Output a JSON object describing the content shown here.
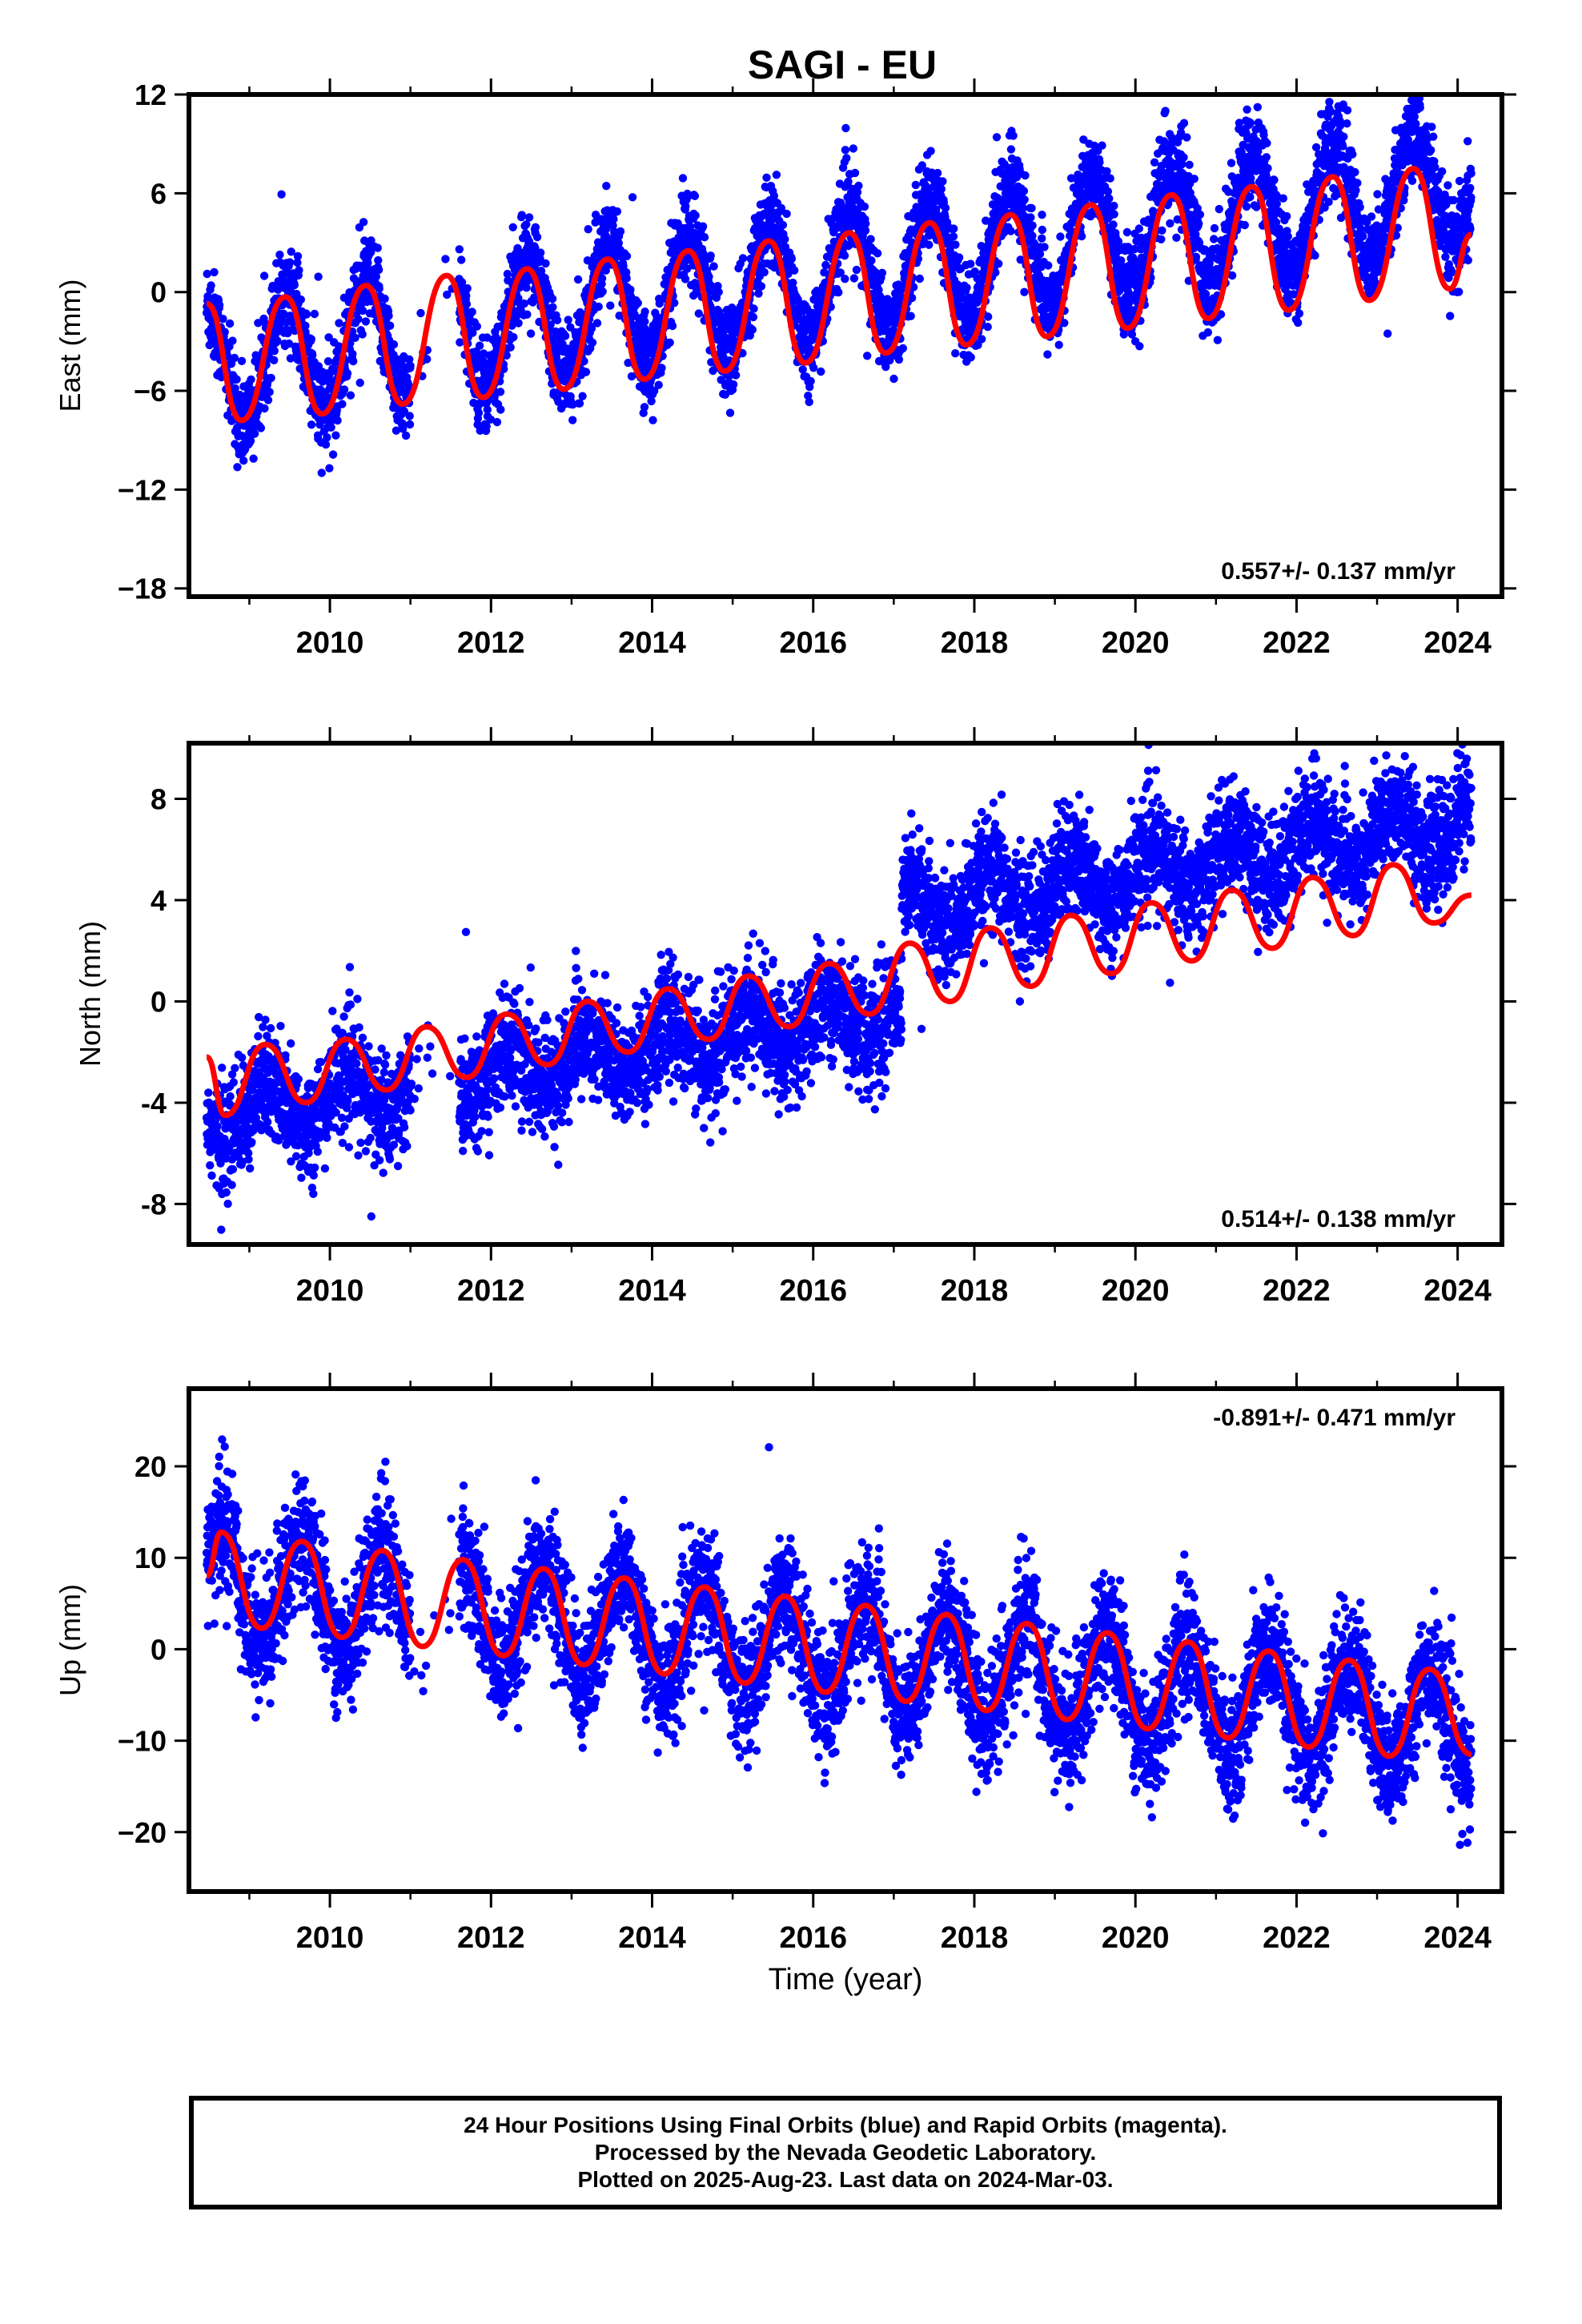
{
  "title": "SAGI - EU",
  "xlabel": "Time (year)",
  "x_ticks": [
    "2010",
    "2012",
    "2014",
    "2016",
    "2018",
    "2020",
    "2022",
    "2024"
  ],
  "caption": {
    "line1": "24 Hour Positions Using Final Orbits (blue) and Rapid Orbits (magenta).",
    "line2": "Processed by the Nevada Geodetic Laboratory.",
    "line3": "Plotted on 2025-Aug-23. Last data on 2024-Mar-03."
  },
  "colors": {
    "final_orbits": "#0000ff",
    "model": "#ff0000",
    "frame": "#000000"
  },
  "chart_data": [
    {
      "type": "scatter",
      "ylabel": "East (mm)",
      "rate_label": "0.557+/- 0.137 mm/yr",
      "xlim": [
        2008.25,
        2024.55
      ],
      "ylim": [
        -18.5,
        12
      ],
      "y_ticks": [
        12,
        6,
        0,
        -6,
        -12,
        -18
      ],
      "y_tick_labels": [
        "12",
        "6",
        "0",
        "−6",
        "−12",
        "−18"
      ],
      "series": [
        {
          "color": "#0000ff",
          "description": "daily positions",
          "x_range": [
            2008.47,
            2024.17
          ],
          "gap": [
            2011.0,
            2011.6
          ],
          "trend": {
            "at_start": -4.5,
            "slope": 0.7
          },
          "seasonal_amplitude": 3.7,
          "scatter_sd": 1.4
        },
        {
          "color": "#ff0000",
          "description": "model fit",
          "x_range": [
            2008.47,
            2024.17
          ],
          "points": [
            [
              2008.47,
              -0.7
            ],
            [
              2008.9,
              -7.8
            ],
            [
              2009.45,
              -0.3
            ],
            [
              2009.9,
              -7.4
            ],
            [
              2010.45,
              0.4
            ],
            [
              2010.9,
              -6.8
            ],
            [
              2011.45,
              1.0
            ],
            [
              2011.9,
              -6.4
            ],
            [
              2012.45,
              1.4
            ],
            [
              2012.9,
              -5.9
            ],
            [
              2013.45,
              2.0
            ],
            [
              2013.9,
              -5.3
            ],
            [
              2014.45,
              2.5
            ],
            [
              2014.9,
              -4.8
            ],
            [
              2015.45,
              3.1
            ],
            [
              2015.9,
              -4.3
            ],
            [
              2016.45,
              3.6
            ],
            [
              2016.9,
              -3.7
            ],
            [
              2017.45,
              4.2
            ],
            [
              2017.9,
              -3.2
            ],
            [
              2018.45,
              4.7
            ],
            [
              2018.9,
              -2.7
            ],
            [
              2019.45,
              5.3
            ],
            [
              2019.9,
              -2.2
            ],
            [
              2020.45,
              5.9
            ],
            [
              2020.9,
              -1.6
            ],
            [
              2021.45,
              6.4
            ],
            [
              2021.9,
              -1.1
            ],
            [
              2022.45,
              7.0
            ],
            [
              2022.9,
              -0.5
            ],
            [
              2023.45,
              7.5
            ],
            [
              2023.9,
              0.2
            ],
            [
              2024.17,
              3.5
            ]
          ]
        }
      ]
    },
    {
      "type": "scatter",
      "ylabel": "North (mm)",
      "rate_label": "0.514+/- 0.138 mm/yr",
      "xlim": [
        2008.25,
        2024.55
      ],
      "ylim": [
        -9.6,
        10.2
      ],
      "y_ticks": [
        8,
        4,
        0,
        -4,
        -8
      ],
      "y_tick_labels": [
        "8",
        "4",
        "0",
        "-4",
        "-8"
      ],
      "series": [
        {
          "color": "#0000ff",
          "description": "daily positions",
          "x_range": [
            2008.47,
            2024.17
          ],
          "gap": [
            2011.0,
            2011.6
          ],
          "trend": {
            "at_start": -4.6,
            "slope": 0.5
          },
          "offset": {
            "at": 2017.1,
            "size": 3.8
          },
          "seasonal_amplitude": 0.9,
          "scatter_sd": 1.1
        },
        {
          "color": "#ff0000",
          "description": "model fit",
          "x_range": [
            2008.47,
            2024.17
          ],
          "points": [
            [
              2008.47,
              -2.2
            ],
            [
              2008.7,
              -4.5
            ],
            [
              2009.2,
              -1.7
            ],
            [
              2009.7,
              -4.0
            ],
            [
              2010.2,
              -1.5
            ],
            [
              2010.7,
              -3.5
            ],
            [
              2011.2,
              -1.0
            ],
            [
              2011.7,
              -3.0
            ],
            [
              2012.2,
              -0.5
            ],
            [
              2012.7,
              -2.5
            ],
            [
              2013.2,
              0.0
            ],
            [
              2013.7,
              -2.0
            ],
            [
              2014.2,
              0.5
            ],
            [
              2014.7,
              -1.5
            ],
            [
              2015.2,
              1.0
            ],
            [
              2015.7,
              -1.0
            ],
            [
              2016.2,
              1.5
            ],
            [
              2016.7,
              -0.5
            ],
            [
              2017.2,
              2.3
            ],
            [
              2017.7,
              0.0
            ],
            [
              2018.2,
              2.9
            ],
            [
              2018.7,
              0.6
            ],
            [
              2019.2,
              3.4
            ],
            [
              2019.7,
              1.1
            ],
            [
              2020.2,
              3.9
            ],
            [
              2020.7,
              1.6
            ],
            [
              2021.2,
              4.4
            ],
            [
              2021.7,
              2.1
            ],
            [
              2022.2,
              4.9
            ],
            [
              2022.7,
              2.6
            ],
            [
              2023.2,
              5.4
            ],
            [
              2023.7,
              3.1
            ],
            [
              2024.17,
              4.2
            ]
          ]
        }
      ]
    },
    {
      "type": "scatter",
      "ylabel": "Up (mm)",
      "rate_label": "-0.891+/- 0.471 mm/yr",
      "xlim": [
        2008.25,
        2024.55
      ],
      "ylim": [
        -26.5,
        28.5
      ],
      "y_ticks": [
        20,
        10,
        0,
        -10,
        -20
      ],
      "y_tick_labels": [
        "20",
        "10",
        "0",
        "−10",
        "−20"
      ],
      "series": [
        {
          "color": "#0000ff",
          "description": "daily positions",
          "x_range": [
            2008.47,
            2024.17
          ],
          "gap": [
            2011.0,
            2011.6
          ],
          "trend": {
            "at_start": 7.5,
            "slope": -1.02
          },
          "seasonal_amplitude": 5.8,
          "scatter_sd": 3.3
        },
        {
          "color": "#ff0000",
          "description": "model fit",
          "x_range": [
            2008.47,
            2024.17
          ],
          "points": [
            [
              2008.47,
              8.0
            ],
            [
              2008.65,
              12.8
            ],
            [
              2009.15,
              2.3
            ],
            [
              2009.65,
              11.8
            ],
            [
              2010.15,
              1.3
            ],
            [
              2010.65,
              10.8
            ],
            [
              2011.15,
              0.3
            ],
            [
              2011.65,
              9.8
            ],
            [
              2012.15,
              -0.7
            ],
            [
              2012.65,
              8.8
            ],
            [
              2013.15,
              -1.7
            ],
            [
              2013.65,
              7.8
            ],
            [
              2014.15,
              -2.7
            ],
            [
              2014.65,
              6.8
            ],
            [
              2015.15,
              -3.7
            ],
            [
              2015.65,
              5.8
            ],
            [
              2016.15,
              -4.7
            ],
            [
              2016.65,
              4.8
            ],
            [
              2017.15,
              -5.7
            ],
            [
              2017.65,
              3.8
            ],
            [
              2018.15,
              -6.7
            ],
            [
              2018.65,
              2.8
            ],
            [
              2019.15,
              -7.7
            ],
            [
              2019.65,
              1.8
            ],
            [
              2020.15,
              -8.7
            ],
            [
              2020.65,
              0.8
            ],
            [
              2021.15,
              -9.7
            ],
            [
              2021.65,
              -0.2
            ],
            [
              2022.15,
              -10.7
            ],
            [
              2022.65,
              -1.2
            ],
            [
              2023.15,
              -11.7
            ],
            [
              2023.65,
              -2.2
            ],
            [
              2024.17,
              -11.5
            ]
          ]
        }
      ]
    }
  ]
}
